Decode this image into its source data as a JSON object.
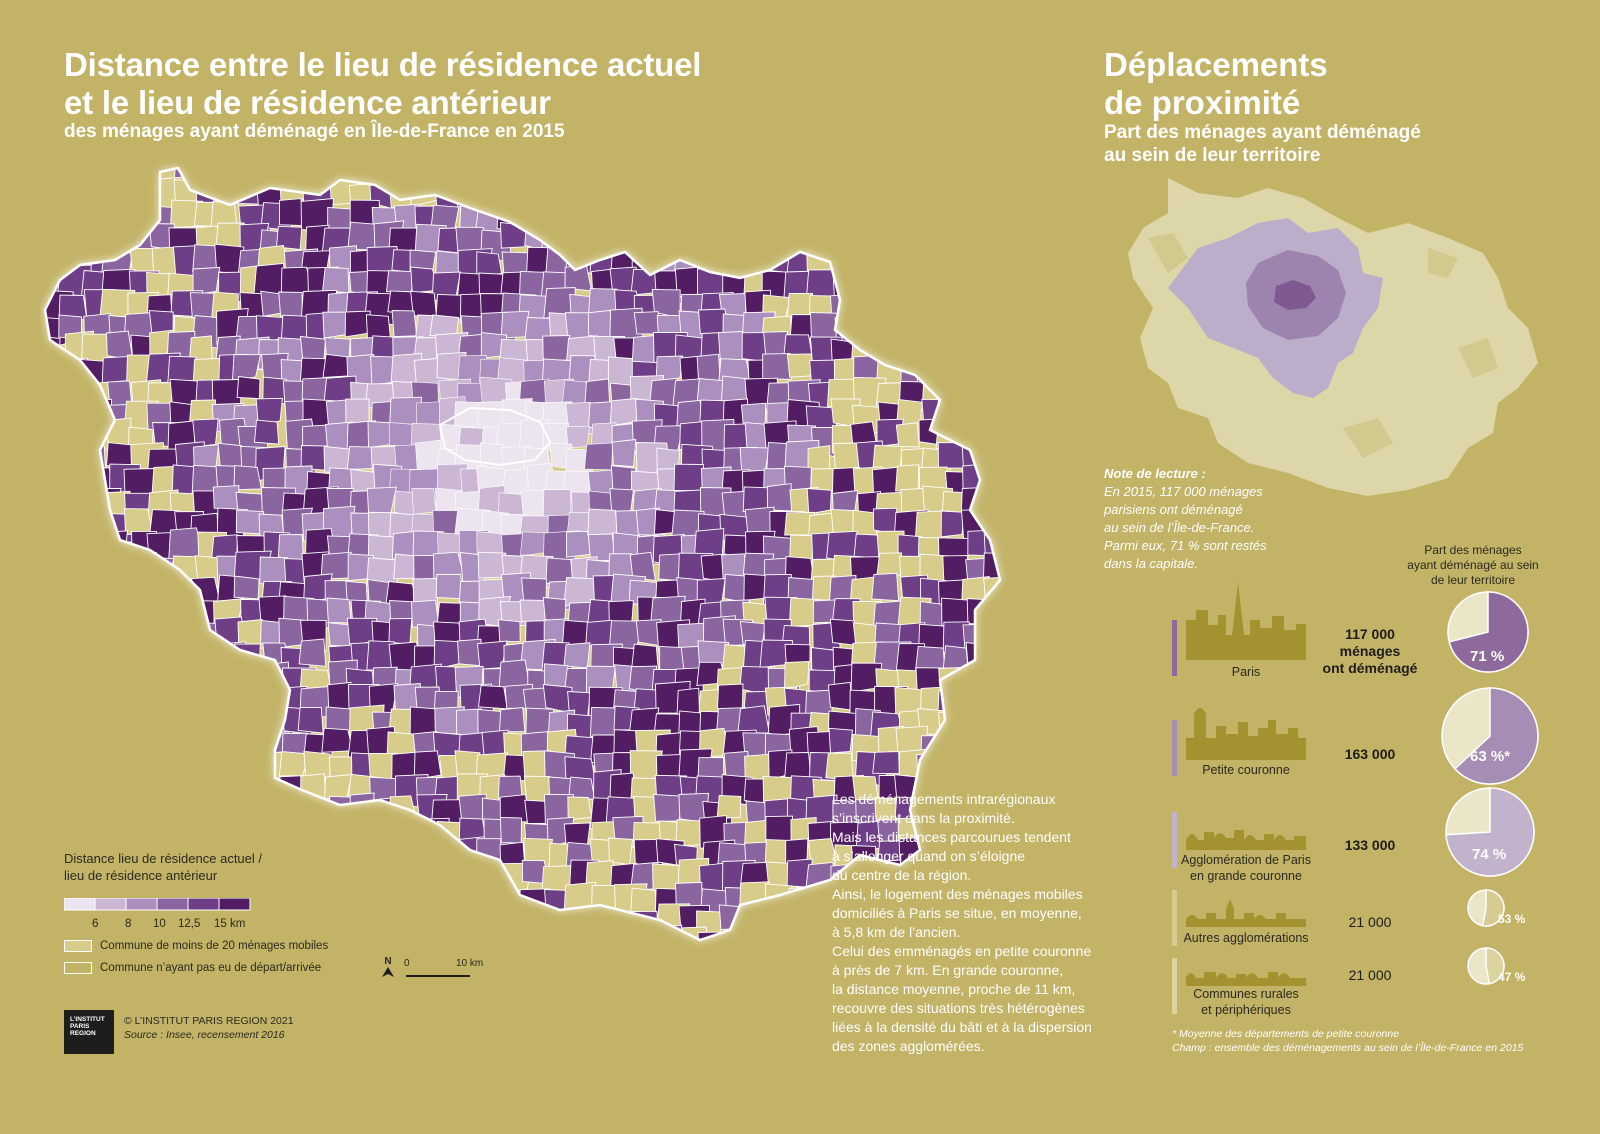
{
  "left": {
    "title_line1": "Distance entre le lieu de résidence actuel",
    "title_line2": "et le lieu de résidence antérieur",
    "subtitle": "des ménages ayant déménagé en Île-de-France en 2015"
  },
  "right": {
    "title_line1": "Déplacements",
    "title_line2": "de proximité",
    "sub_line1": "Part des ménages ayant déménagé",
    "sub_line2": "au sein de leur territoire"
  },
  "legend": {
    "title_line1": "Distance lieu de résidence actuel /",
    "title_line2": "lieu de résidence antérieur",
    "ticks": [
      "6",
      "8",
      "10",
      "12,5",
      "15 km"
    ],
    "class_colors": [
      "#ece4ee",
      "#cbb7d4",
      "#ab8fbe",
      "#8a65a0",
      "#6e3f86",
      "#521d63"
    ],
    "few_movers_label": "Commune de moins de 20 ménages mobiles",
    "few_movers_color": "#d8cc8a",
    "no_movers_label": "Commune n’ayant pas eu de départ/arrivée",
    "no_movers_color": "#c2b366",
    "north": "N",
    "scale_0": "0",
    "scale_10": "10 km"
  },
  "credits": {
    "logo_l1": "L’INSTITUT",
    "logo_l2": "PARIS",
    "logo_l3": "REGION",
    "copyright": "© L’INSTITUT PARIS REGION 2021",
    "source": "Source : Insee, recensement 2016"
  },
  "paragraph": [
    "Les déménagements intrarégionaux",
    "s’inscrivent dans la proximité.",
    "Mais les distances parcourues tendent",
    "à s’allonger quand on s’éloigne",
    "du centre de la région.",
    "Ainsi, le logement des ménages mobiles",
    "domiciliés à Paris se situe, en moyenne,",
    "à 5,8 km de l’ancien.",
    "Celui des emménagés en petite couronne",
    "à près de 7 km. En grande couronne,",
    "la distance moyenne, proche de 11 km,",
    "recouvre des situations très hétérogènes",
    "liées à la densité du bâti et à la dispersion",
    "des zones agglomérées."
  ],
  "note": {
    "title": "Note de lecture :",
    "lines": [
      "En 2015, 117 000 ménages",
      "parisiens ont déménagé",
      "au sein de l’Île-de-France.",
      "Parmi eux, 71 % sont restés",
      "dans la capitale."
    ]
  },
  "pie_header": [
    "Part des ménages",
    "ayant déménagé au sein",
    "de leur territoire"
  ],
  "territories": [
    {
      "label1": "Paris",
      "label2": "",
      "count": "117 000",
      "count_sub1": "ménages",
      "count_sub2": "ont déménagé",
      "share": 71,
      "share_label": "71 %",
      "color": "#8e6a9c"
    },
    {
      "label1": "Petite couronne",
      "label2": "",
      "count": "163 000",
      "count_sub1": "",
      "count_sub2": "",
      "share": 63,
      "share_label": "63 %*",
      "color": "#a58db3"
    },
    {
      "label1": "Agglomération de Paris",
      "label2": "en grande couronne",
      "count": "133 000",
      "count_sub1": "",
      "count_sub2": "",
      "share": 74,
      "share_label": "74 %",
      "color": "#c2b2cc"
    },
    {
      "label1": "Autres agglomérations",
      "label2": "",
      "count": "21 000",
      "count_sub1": "",
      "count_sub2": "",
      "share": 53,
      "share_label": "53 %",
      "color": "#d6cc92"
    },
    {
      "label1": "Communes rurales",
      "label2": "et périphériques",
      "count": "21 000",
      "count_sub1": "",
      "count_sub2": "",
      "share": 47,
      "share_label": "47 %",
      "color": "#dcd39e"
    }
  ],
  "footnotes": {
    "f1": "* Moyenne des départements de petite couronne",
    "f2": "Champ : ensemble des déménagements au sein de l’Île-de-France en 2015"
  }
}
